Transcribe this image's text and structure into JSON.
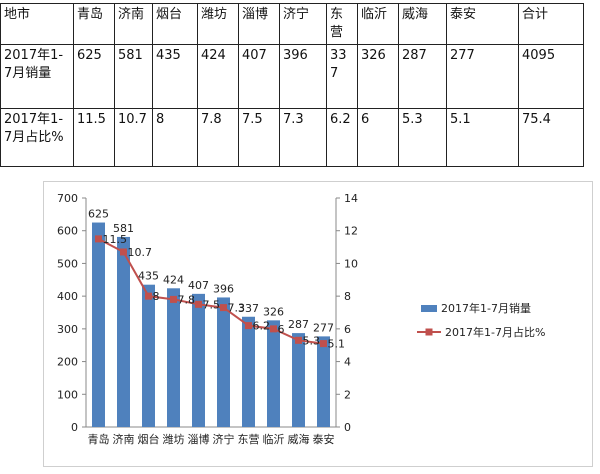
{
  "table": {
    "header_label": "地市",
    "total_label": "合计",
    "rows": [
      {
        "label": "2017年1-7月销量",
        "values": [
          "625",
          "581",
          "435",
          "424",
          "407",
          "396",
          "337",
          "326",
          "287",
          "277"
        ],
        "total": "4095"
      },
      {
        "label": "2017年1-7月占比%",
        "values": [
          "11.5",
          "10.7",
          "8",
          "7.8",
          "7.5",
          "7.3",
          "6.2",
          "6",
          "5.3",
          "5.1"
        ],
        "total": "75.4"
      }
    ]
  },
  "chart_data": {
    "type": "bar",
    "categories": [
      "青岛",
      "济南",
      "烟台",
      "潍坊",
      "淄博",
      "济宁",
      "东营",
      "临沂",
      "威海",
      "泰安"
    ],
    "series": [
      {
        "name": "2017年1-7月销量",
        "type": "bar",
        "axis": "left",
        "color": "#4F81BD",
        "values": [
          625,
          581,
          435,
          424,
          407,
          396,
          337,
          326,
          287,
          277
        ]
      },
      {
        "name": "2017年1-7月占比%",
        "type": "line",
        "axis": "right",
        "color": "#C0504D",
        "values": [
          11.5,
          10.7,
          8,
          7.8,
          7.5,
          7.3,
          6.2,
          6,
          5.3,
          5.1
        ]
      }
    ],
    "ylim": [
      0,
      700
    ],
    "y_ticks": [
      0,
      100,
      200,
      300,
      400,
      500,
      600,
      700
    ],
    "y2lim": [
      0,
      14
    ],
    "y2_ticks": [
      0,
      2,
      4,
      6,
      8,
      10,
      12,
      14
    ],
    "grid": false,
    "legend": "right"
  }
}
